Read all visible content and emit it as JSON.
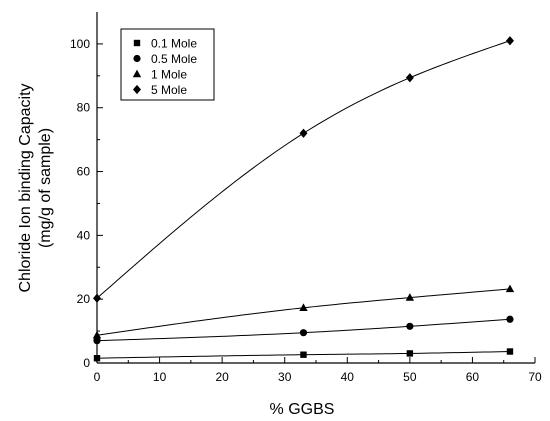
{
  "chart_data": {
    "type": "scatter",
    "xlabel": "% GGBS",
    "ylabel_lines": [
      "Chloride Ion binding Capacity",
      "(mg/g of sample)"
    ],
    "xlim": [
      0,
      70
    ],
    "ylim": [
      0,
      110
    ],
    "x_ticks": [
      0,
      10,
      20,
      30,
      40,
      50,
      60,
      70
    ],
    "y_ticks": [
      0,
      20,
      40,
      60,
      80,
      100
    ],
    "grid": false,
    "legend_position": "top-left",
    "x": [
      0,
      33,
      50,
      66
    ],
    "series": [
      {
        "name": "0.1 Mole",
        "marker": "square",
        "values": [
          1.5,
          2.6,
          3.0,
          3.6
        ]
      },
      {
        "name": "0.5 Mole",
        "marker": "circle",
        "values": [
          7.0,
          9.5,
          11.5,
          13.7
        ]
      },
      {
        "name": "1 Mole",
        "marker": "triangle",
        "values": [
          8.7,
          17.3,
          20.5,
          23.2
        ]
      },
      {
        "name": "5 Mole",
        "marker": "diamond",
        "values": [
          20.3,
          72.0,
          89.4,
          101.0
        ]
      }
    ],
    "colors": {
      "line": "#000000",
      "marker": "#000000",
      "axis": "#000000"
    }
  }
}
